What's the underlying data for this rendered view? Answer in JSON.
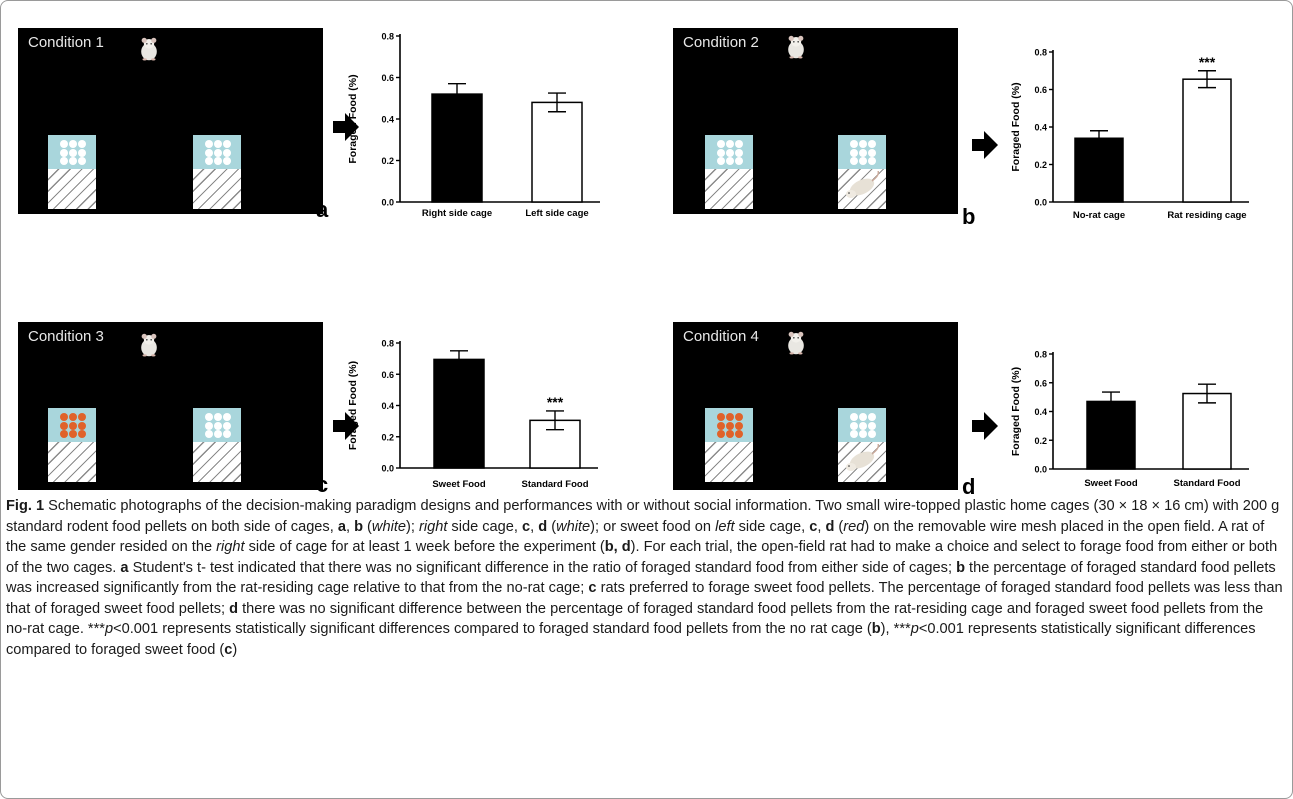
{
  "conditions": [
    {
      "label": "Condition 1",
      "left_food": "white",
      "right_food": "white",
      "rat_in_right_cage": false
    },
    {
      "label": "Condition 2",
      "left_food": "white",
      "right_food": "white",
      "rat_in_right_cage": true
    },
    {
      "label": "Condition 3",
      "left_food": "orange",
      "right_food": "white",
      "rat_in_right_cage": false
    },
    {
      "label": "Condition 4",
      "left_food": "orange",
      "right_food": "white",
      "rat_in_right_cage": true
    }
  ],
  "colors": {
    "scene_bg": "#000000",
    "food_area": "#a9d6dc",
    "white_pellet": "#ffffff",
    "orange_pellet": "#e0622a"
  },
  "icons": {
    "rat": "rat-icon",
    "arrow": "arrow-right-icon"
  },
  "chart_data": [
    {
      "panel": "a",
      "type": "bar",
      "categories": [
        "Right side cage",
        "Left side cage"
      ],
      "values": [
        0.52,
        0.48
      ],
      "errors": [
        0.05,
        0.045
      ],
      "ylabel": "Foraged Food (%)",
      "ylim": [
        0.0,
        0.8
      ],
      "yticks": [
        "0.0",
        "0.2",
        "0.4",
        "0.6",
        "0.8"
      ],
      "bar_fill": [
        "#000000",
        "#ffffff"
      ],
      "significance": [
        "",
        ""
      ]
    },
    {
      "panel": "b",
      "type": "bar",
      "categories": [
        "No-rat cage",
        "Rat residing cage"
      ],
      "values": [
        0.34,
        0.655
      ],
      "errors": [
        0.04,
        0.045
      ],
      "ylabel": "Foraged Food (%)",
      "ylim": [
        0.0,
        0.8
      ],
      "yticks": [
        "0.0",
        "0.2",
        "0.4",
        "0.6",
        "0.8"
      ],
      "bar_fill": [
        "#000000",
        "#ffffff"
      ],
      "significance": [
        "",
        "***"
      ]
    },
    {
      "panel": "c",
      "type": "bar",
      "categories": [
        "Sweet Food",
        "Standard Food"
      ],
      "values": [
        0.695,
        0.305
      ],
      "errors": [
        0.055,
        0.06
      ],
      "ylabel": "Foraged Food (%)",
      "ylim": [
        0.0,
        0.8
      ],
      "yticks": [
        "0.0",
        "0.2",
        "0.4",
        "0.6",
        "0.8"
      ],
      "bar_fill": [
        "#000000",
        "#ffffff"
      ],
      "significance": [
        "",
        "***"
      ]
    },
    {
      "panel": "d",
      "type": "bar",
      "categories": [
        "Sweet Food",
        "Standard Food"
      ],
      "values": [
        0.47,
        0.525
      ],
      "errors": [
        0.065,
        0.065
      ],
      "ylabel": "Foraged Food (%)",
      "ylim": [
        0.0,
        0.8
      ],
      "yticks": [
        "0.0",
        "0.2",
        "0.4",
        "0.6",
        "0.8"
      ],
      "bar_fill": [
        "#000000",
        "#ffffff"
      ],
      "significance": [
        "",
        ""
      ]
    }
  ],
  "caption": {
    "label": "Fig. 1",
    "parts": [
      " Schematic photographs of the decision-making paradigm designs and performances with or without social information. Two small wire-topped plastic home cages (30 × 18 × 16 cm) with 200 g standard rodent food pellets on both side of cages, ",
      "a",
      ", ",
      "b",
      " (",
      "white",
      "); ",
      "right",
      " side cage, ",
      "c",
      ", ",
      "d",
      " (",
      "white",
      "); or sweet food on ",
      "left",
      " side cage, ",
      "c",
      ", ",
      "d",
      " (",
      "red",
      ") on the removable wire mesh placed in the open field. A rat of the same gender resided on the ",
      "right",
      " side of cage for at least 1 week before the experiment (",
      "b, d",
      "). For each trial, the open-field rat had to make a choice and select to forage food from either or both of the two cages. ",
      "a",
      " Student's t- test indicated that there was no significant difference in the ratio of foraged standard food from either side of cages; ",
      "b",
      " the percentage of foraged standard food pellets was increased significantly from the rat-residing cage relative to that from the no-rat cage; ",
      "c",
      " rats preferred to forage sweet food pellets. The percentage of foraged standard food pellets was less than that of foraged sweet food pellets; ",
      "d",
      " there was no significant difference between the percentage of foraged standard food pellets from the rat-residing cage and foraged sweet food pellets from the no-rat cage. ***",
      "p",
      "<0.001 represents statistically significant differences compared to foraged standard food pellets from the no rat cage (",
      "b",
      "), ***",
      "p",
      "<0.001 represents statistically significant differences compared to foraged sweet food (",
      "c",
      ")"
    ]
  }
}
